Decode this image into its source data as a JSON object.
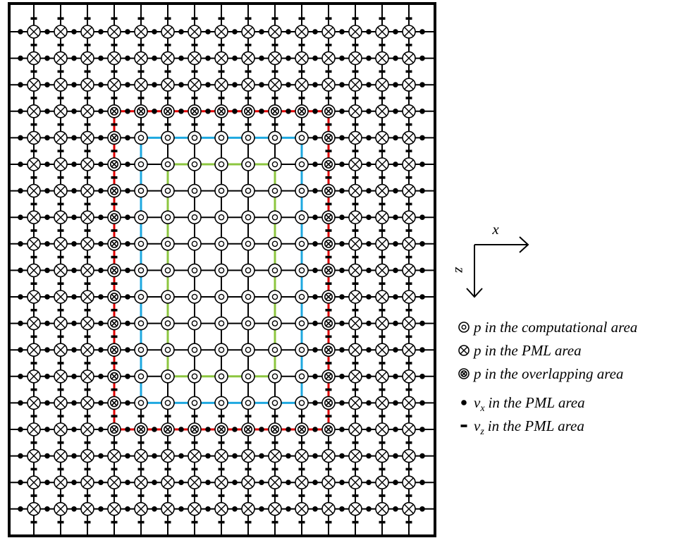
{
  "axes": {
    "x_label": "x",
    "z_label": "z"
  },
  "legend": [
    {
      "var": "p",
      "text": "in the computational area"
    },
    {
      "var": "p",
      "text": "in the PML area"
    },
    {
      "var": "p",
      "text": "in the overlapping area"
    },
    {
      "var": "v",
      "sub": "x",
      "text": "in the PML area"
    },
    {
      "var": "v",
      "sub": "z",
      "text": "in the PML area"
    }
  ]
}
